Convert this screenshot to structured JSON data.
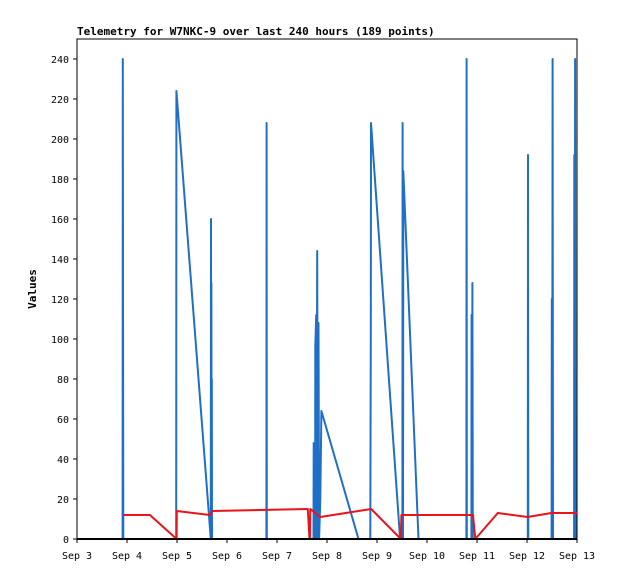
{
  "chart_data": {
    "type": "line",
    "title": "Telemetry for W7NKC-9 over last 240 hours (189 points)",
    "xlabel": "",
    "ylabel": "Values",
    "xlim": [
      0,
      240
    ],
    "ylim": [
      0,
      250
    ],
    "x_ticks": [
      {
        "x": 0,
        "label": "Sep 3"
      },
      {
        "x": 24,
        "label": "Sep 4"
      },
      {
        "x": 48,
        "label": "Sep 5"
      },
      {
        "x": 72,
        "label": "Sep 6"
      },
      {
        "x": 96,
        "label": "Sep 7"
      },
      {
        "x": 120,
        "label": "Sep 8"
      },
      {
        "x": 144,
        "label": "Sep 9"
      },
      {
        "x": 168,
        "label": "Sep 10"
      },
      {
        "x": 192,
        "label": "Sep 11"
      },
      {
        "x": 216,
        "label": "Sep 12"
      },
      {
        "x": 240,
        "label": "Sep 13"
      }
    ],
    "y_ticks": [
      0,
      20,
      40,
      60,
      80,
      100,
      120,
      140,
      160,
      180,
      200,
      220,
      240
    ],
    "grid": false,
    "series": [
      {
        "name": "",
        "color": "#1f6fc6",
        "points": [
          [
            21.9,
            0
          ],
          [
            22.0,
            240
          ],
          [
            22.1,
            120
          ],
          [
            22.2,
            0
          ],
          [
            47.6,
            0
          ],
          [
            47.7,
            224
          ],
          [
            64.2,
            0
          ],
          [
            64.3,
            160
          ],
          [
            64.4,
            0
          ],
          [
            64.5,
            128
          ],
          [
            64.6,
            0
          ],
          [
            64.7,
            80
          ],
          [
            64.8,
            0
          ],
          [
            90.9,
            0
          ],
          [
            91.0,
            208
          ],
          [
            91.1,
            0
          ],
          [
            113.5,
            0
          ],
          [
            113.6,
            48
          ],
          [
            113.7,
            0
          ],
          [
            114.3,
            0
          ],
          [
            114.4,
            96
          ],
          [
            114.8,
            112
          ],
          [
            115.0,
            0
          ],
          [
            115.3,
            144
          ],
          [
            115.6,
            0
          ],
          [
            115.9,
            108
          ],
          [
            116.2,
            0
          ],
          [
            116.8,
            20
          ],
          [
            117.3,
            64
          ],
          [
            135.1,
            0
          ],
          [
            140.8,
            0
          ],
          [
            141.0,
            104
          ],
          [
            141.1,
            208
          ],
          [
            155.1,
            0
          ],
          [
            156.2,
            0
          ],
          [
            156.3,
            208
          ],
          [
            156.5,
            0
          ],
          [
            156.6,
            184
          ],
          [
            163.9,
            0
          ],
          [
            186.9,
            0
          ],
          [
            187.0,
            240
          ],
          [
            187.1,
            0
          ],
          [
            189.3,
            0
          ],
          [
            189.4,
            112
          ],
          [
            189.6,
            0
          ],
          [
            189.8,
            128
          ],
          [
            190.0,
            0
          ],
          [
            216.4,
            0
          ],
          [
            216.5,
            192
          ],
          [
            216.6,
            0
          ],
          [
            227.8,
            0
          ],
          [
            227.9,
            120
          ],
          [
            228.1,
            0
          ],
          [
            228.3,
            240
          ],
          [
            228.5,
            0
          ],
          [
            238.6,
            0
          ],
          [
            238.7,
            192
          ],
          [
            238.9,
            0
          ],
          [
            239.1,
            240
          ],
          [
            239.3,
            0
          ]
        ]
      },
      {
        "name": "",
        "color": "#e8141b",
        "points": [
          [
            22.0,
            12
          ],
          [
            35.0,
            12
          ],
          [
            47.8,
            0
          ],
          [
            47.9,
            14
          ],
          [
            63.8,
            12
          ],
          [
            65.0,
            14
          ],
          [
            110.8,
            15
          ],
          [
            111.6,
            0
          ],
          [
            111.9,
            0
          ],
          [
            112.0,
            15
          ],
          [
            116.8,
            11
          ],
          [
            141.2,
            15
          ],
          [
            154.5,
            1
          ],
          [
            155.4,
            0
          ],
          [
            155.7,
            12
          ],
          [
            190.1,
            12
          ],
          [
            191.2,
            0
          ],
          [
            202.0,
            13
          ],
          [
            216.3,
            11
          ],
          [
            227.7,
            13
          ],
          [
            240.0,
            13
          ]
        ]
      },
      {
        "name": "",
        "color": "#000000",
        "points": [
          [
            0,
            0
          ],
          [
            240,
            0
          ]
        ]
      }
    ]
  }
}
